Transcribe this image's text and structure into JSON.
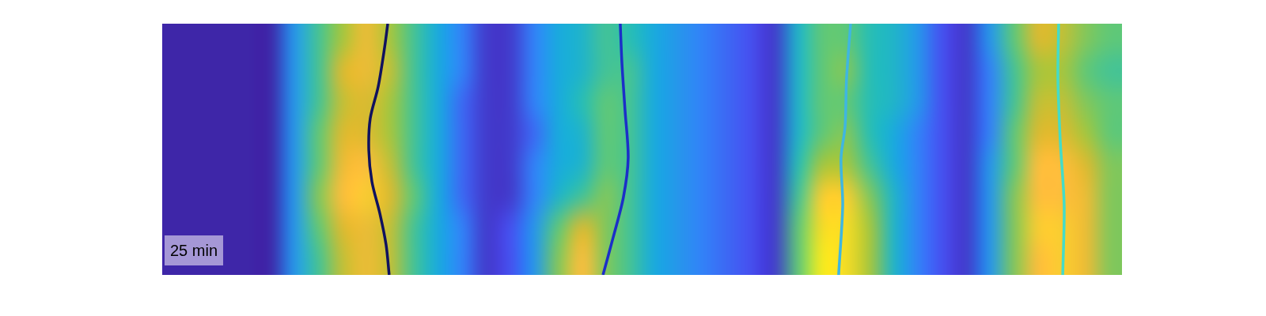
{
  "chart_data": {
    "type": "heatmap",
    "annotation": "25 min",
    "tick_labels": false,
    "grid": false,
    "xlim": [
      0,
      40
    ],
    "ylim": [
      0,
      8
    ],
    "color_range": [
      0,
      1
    ],
    "cells": [
      [
        0,
        0,
        0,
        0,
        0,
        0.25,
        0.45,
        0.6,
        0.75,
        0.6,
        0.45,
        0.3,
        0.2,
        0.05,
        0.05,
        0.2,
        0.3,
        0.35,
        0.45,
        0.4,
        0.3,
        0.25,
        0.2,
        0.15,
        0.1,
        0.05,
        0.35,
        0.5,
        0.5,
        0.4,
        0.35,
        0.25,
        0.1,
        0.05,
        0.25,
        0.5,
        0.7,
        0.65,
        0.55,
        0.5
      ],
      [
        0,
        0,
        0,
        0,
        0,
        0.25,
        0.45,
        0.7,
        0.75,
        0.65,
        0.45,
        0.3,
        0.2,
        0.05,
        0.05,
        0.2,
        0.3,
        0.35,
        0.45,
        0.45,
        0.3,
        0.25,
        0.2,
        0.15,
        0.1,
        0.05,
        0.35,
        0.5,
        0.55,
        0.4,
        0.35,
        0.25,
        0.1,
        0.05,
        0.2,
        0.45,
        0.6,
        0.6,
        0.5,
        0.45
      ],
      [
        0,
        0,
        0,
        0,
        0,
        0.25,
        0.45,
        0.65,
        0.7,
        0.6,
        0.45,
        0.3,
        0.15,
        0.05,
        0.05,
        0.2,
        0.3,
        0.4,
        0.5,
        0.45,
        0.3,
        0.25,
        0.2,
        0.15,
        0.1,
        0.05,
        0.35,
        0.5,
        0.5,
        0.4,
        0.35,
        0.25,
        0.1,
        0.05,
        0.2,
        0.45,
        0.65,
        0.65,
        0.55,
        0.5
      ],
      [
        0,
        0,
        0,
        0,
        0,
        0.25,
        0.5,
        0.7,
        0.7,
        0.6,
        0.45,
        0.3,
        0.15,
        0.05,
        0.05,
        0.15,
        0.3,
        0.35,
        0.5,
        0.45,
        0.3,
        0.25,
        0.2,
        0.15,
        0.1,
        0.05,
        0.35,
        0.5,
        0.55,
        0.4,
        0.3,
        0.2,
        0.1,
        0.05,
        0.2,
        0.5,
        0.7,
        0.7,
        0.6,
        0.5
      ],
      [
        0,
        0,
        0,
        0,
        0,
        0.25,
        0.5,
        0.75,
        0.8,
        0.65,
        0.45,
        0.3,
        0.15,
        0.05,
        0.05,
        0.2,
        0.3,
        0.35,
        0.5,
        0.45,
        0.3,
        0.25,
        0.2,
        0.15,
        0.1,
        0.05,
        0.4,
        0.6,
        0.6,
        0.45,
        0.3,
        0.2,
        0.1,
        0.05,
        0.25,
        0.5,
        0.8,
        0.8,
        0.7,
        0.55
      ],
      [
        0,
        0,
        0,
        0,
        0,
        0.25,
        0.55,
        0.8,
        0.85,
        0.7,
        0.5,
        0.3,
        0.15,
        0.05,
        0.05,
        0.2,
        0.35,
        0.45,
        0.55,
        0.45,
        0.3,
        0.25,
        0.2,
        0.15,
        0.1,
        0.05,
        0.45,
        0.85,
        0.85,
        0.55,
        0.35,
        0.2,
        0.1,
        0.05,
        0.25,
        0.55,
        0.8,
        0.8,
        0.75,
        0.55
      ],
      [
        0,
        0,
        0,
        0,
        0,
        0.25,
        0.5,
        0.7,
        0.75,
        0.65,
        0.45,
        0.3,
        0.2,
        0.05,
        0.1,
        0.25,
        0.5,
        0.7,
        0.55,
        0.45,
        0.3,
        0.25,
        0.2,
        0.15,
        0.1,
        0.05,
        0.5,
        0.9,
        0.9,
        0.6,
        0.35,
        0.2,
        0.1,
        0.05,
        0.25,
        0.55,
        0.85,
        0.85,
        0.75,
        0.55
      ],
      [
        0,
        0,
        0,
        0,
        0,
        0.25,
        0.45,
        0.65,
        0.75,
        0.65,
        0.45,
        0.3,
        0.2,
        0.05,
        0.1,
        0.25,
        0.55,
        0.8,
        0.55,
        0.45,
        0.3,
        0.25,
        0.2,
        0.15,
        0.1,
        0.05,
        0.5,
        0.95,
        0.9,
        0.6,
        0.35,
        0.2,
        0.1,
        0.05,
        0.25,
        0.55,
        0.8,
        0.85,
        0.75,
        0.55
      ]
    ],
    "series": [
      {
        "type": "line",
        "color": "#10125e",
        "x": [
          9.4,
          9.27,
          9.0,
          8.67,
          8.61,
          8.74,
          9.07,
          9.33,
          9.46
        ],
        "y": [
          0,
          0.75,
          2.01,
          3.02,
          4.03,
          5.03,
          6.04,
          7.04,
          8.0
        ]
      },
      {
        "type": "line",
        "color": "#1b2fc8",
        "x": [
          19.09,
          19.16,
          19.29,
          19.42,
          19.22,
          18.8,
          18.37
        ],
        "y": [
          0,
          1.26,
          2.77,
          4.28,
          5.53,
          6.79,
          8.0
        ]
      },
      {
        "type": "line",
        "color": "#3fb6e0",
        "x": [
          28.69,
          28.52,
          28.46,
          28.29,
          28.36,
          28.19
        ],
        "y": [
          0,
          1.76,
          3.27,
          4.28,
          5.79,
          8.0
        ]
      },
      {
        "type": "line",
        "color": "#44dcc8",
        "x": [
          37.36,
          37.33,
          37.43,
          37.59,
          37.53
        ],
        "y": [
          0,
          1.76,
          3.77,
          5.79,
          8.0
        ]
      }
    ]
  }
}
